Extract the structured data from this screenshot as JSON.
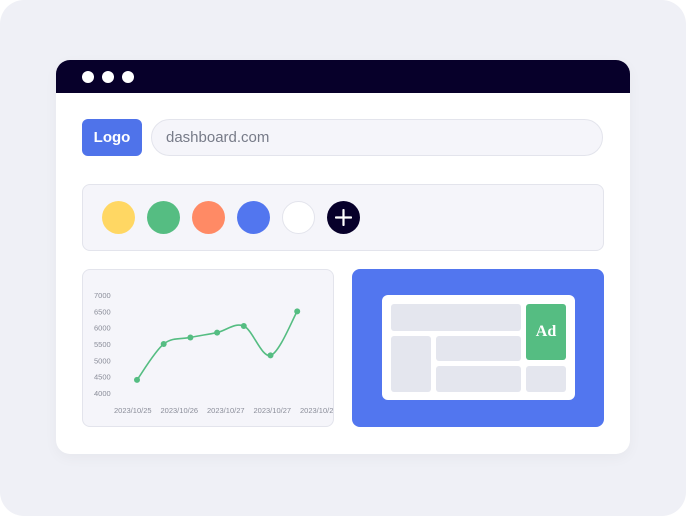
{
  "browser": {
    "url": "dashboard.com",
    "logo_label": "Logo"
  },
  "palette": {
    "colors": [
      "#ffd763",
      "#55bd82",
      "#ff8a65",
      "#5276ef",
      "#ffffff"
    ],
    "add_icon": "plus-icon"
  },
  "chart_data": {
    "type": "line",
    "x_tick_labels": [
      "2023/10/25",
      "2023/10/26",
      "2023/10/27",
      "2023/10/27",
      "2023/10/27"
    ],
    "y_tick_labels": [
      "7000",
      "6500",
      "6000",
      "5500",
      "5000",
      "4500",
      "4000"
    ],
    "ylim": [
      4000,
      7000
    ],
    "values": [
      4400,
      5500,
      5700,
      5850,
      6050,
      5150,
      6500
    ],
    "color": "#55bd82",
    "smooth": true
  },
  "ad": {
    "label": "Ad",
    "color": "#55bd82",
    "panel_color": "#5276ef"
  }
}
